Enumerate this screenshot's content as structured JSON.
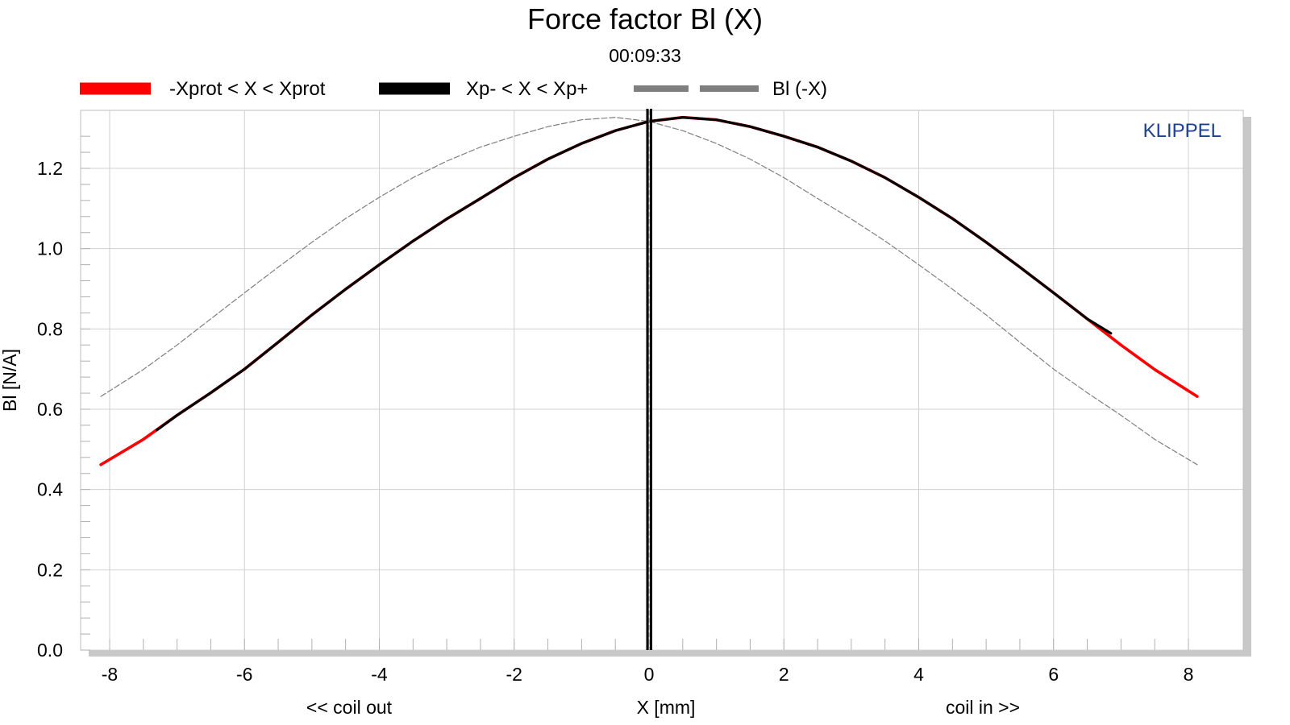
{
  "chart_data": {
    "type": "line",
    "title": "Force factor Bl (X)",
    "subtitle": "00:09:33",
    "xlabel": "X [mm]",
    "xlabel_left": "<< coil out",
    "xlabel_right": "coil in >>",
    "ylabel": "Bl [N/A]",
    "brand": "KLIPPEL",
    "brand_color": "#1f3f8f",
    "xlim": [
      -8.4,
      8.4
    ],
    "ylim": [
      0.0,
      1.35
    ],
    "xticks": [
      -8,
      -6,
      -4,
      -2,
      0,
      2,
      4,
      6,
      8
    ],
    "xtick_labels": [
      "-8",
      "-6",
      "-4",
      "-2",
      "0",
      "2",
      "4",
      "6",
      "8"
    ],
    "yticks": [
      0.0,
      0.2,
      0.4,
      0.6,
      0.8,
      1.0,
      1.2
    ],
    "ytick_labels": [
      "0.0",
      "0.2",
      "0.4",
      "0.6",
      "0.8",
      "1.0",
      "1.2"
    ],
    "grid": true,
    "legend_position": "top",
    "vertical_marker_x": 0.0,
    "series": [
      {
        "name": "-Xprot < X < Xprot",
        "color": "#ff0000",
        "style": "solid",
        "x": [
          -8.13,
          -7.5,
          -7.0,
          -6.5,
          -6.0,
          -5.5,
          -5.0,
          -4.5,
          -4.0,
          -3.5,
          -3.0,
          -2.5,
          -2.0,
          -1.5,
          -1.0,
          -0.5,
          0.0,
          0.5,
          1.0,
          1.5,
          2.0,
          2.5,
          3.0,
          3.5,
          4.0,
          4.5,
          5.0,
          5.5,
          6.0,
          6.5,
          7.0,
          7.5,
          8.13
        ],
        "y": [
          0.462,
          0.525,
          0.585,
          0.641,
          0.7,
          0.767,
          0.835,
          0.899,
          0.96,
          1.019,
          1.074,
          1.125,
          1.177,
          1.223,
          1.262,
          1.294,
          1.317,
          1.327,
          1.321,
          1.304,
          1.28,
          1.253,
          1.218,
          1.177,
          1.128,
          1.075,
          1.016,
          0.954,
          0.89,
          0.825,
          0.76,
          0.699,
          0.632
        ]
      },
      {
        "name": "Xp- < X < Xp+",
        "color": "#000000",
        "style": "solid",
        "x": [
          -7.3,
          -7.0,
          -6.5,
          -6.0,
          -5.5,
          -5.0,
          -4.5,
          -4.0,
          -3.5,
          -3.0,
          -2.5,
          -2.0,
          -1.5,
          -1.0,
          -0.5,
          0.0,
          0.5,
          1.0,
          1.5,
          2.0,
          2.5,
          3.0,
          3.5,
          4.0,
          4.5,
          5.0,
          5.5,
          6.0,
          6.5,
          6.85
        ],
        "y": [
          0.548,
          0.585,
          0.641,
          0.7,
          0.767,
          0.835,
          0.899,
          0.96,
          1.019,
          1.074,
          1.125,
          1.177,
          1.223,
          1.262,
          1.294,
          1.317,
          1.327,
          1.321,
          1.304,
          1.28,
          1.253,
          1.218,
          1.177,
          1.128,
          1.075,
          1.016,
          0.954,
          0.89,
          0.825,
          0.789
        ]
      },
      {
        "name": "Bl (-X)",
        "color": "#7f7f7f",
        "style": "dashed",
        "x": [
          -8.13,
          -7.5,
          -7.0,
          -6.5,
          -6.0,
          -5.5,
          -5.0,
          -4.5,
          -4.0,
          -3.5,
          -3.0,
          -2.5,
          -2.0,
          -1.5,
          -1.0,
          -0.5,
          0.0,
          0.5,
          1.0,
          1.5,
          2.0,
          2.5,
          3.0,
          3.5,
          4.0,
          4.5,
          5.0,
          5.5,
          6.0,
          6.5,
          7.0,
          7.5,
          8.13
        ],
        "y": [
          0.632,
          0.699,
          0.76,
          0.825,
          0.89,
          0.954,
          1.016,
          1.075,
          1.128,
          1.177,
          1.218,
          1.253,
          1.28,
          1.304,
          1.321,
          1.327,
          1.317,
          1.294,
          1.262,
          1.223,
          1.177,
          1.125,
          1.074,
          1.019,
          0.96,
          0.899,
          0.835,
          0.767,
          0.7,
          0.641,
          0.585,
          0.525,
          0.462
        ]
      }
    ]
  }
}
